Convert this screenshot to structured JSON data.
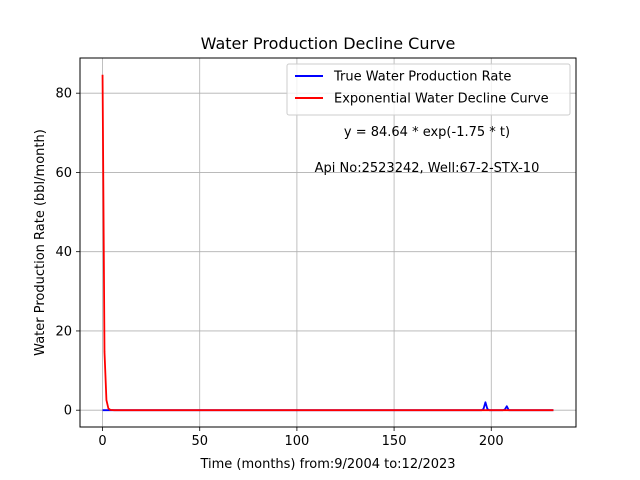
{
  "chart_data": {
    "type": "line",
    "title": "Water Production Decline Curve",
    "xlabel": "Time (months) from:9/2004 to:12/2023",
    "ylabel": "Water Production Rate (bbl/month)",
    "xlim": [
      -11.6,
      243.6
    ],
    "ylim": [
      -4.24,
      88.88
    ],
    "xticks": [
      0,
      50,
      100,
      150,
      200
    ],
    "yticks": [
      0,
      20,
      40,
      60,
      80
    ],
    "grid": true,
    "legend_position": "top-right",
    "annotations": [
      "y = 84.64 * exp(-1.75 * t)",
      "Api No:2523242, Well:67-2-STX-10"
    ],
    "series": [
      {
        "name": "True Water Production Rate",
        "color": "#0000ff",
        "x": [
          0,
          10,
          50,
          100,
          150,
          195,
          196,
          197,
          198,
          199,
          206,
          207,
          208,
          209,
          232
        ],
        "y": [
          0,
          0,
          0,
          0,
          0,
          0,
          0.3,
          2.0,
          0.3,
          0,
          0,
          0.2,
          1.0,
          0,
          0
        ]
      },
      {
        "name": "Exponential Water Decline Curve",
        "color": "#ff0000",
        "x": [
          0,
          1,
          2,
          3,
          4,
          6,
          10,
          50,
          100,
          150,
          200,
          232
        ],
        "y": [
          84.64,
          14.7,
          2.56,
          0.45,
          0.08,
          0,
          0,
          0,
          0,
          0,
          0,
          0
        ]
      }
    ]
  }
}
